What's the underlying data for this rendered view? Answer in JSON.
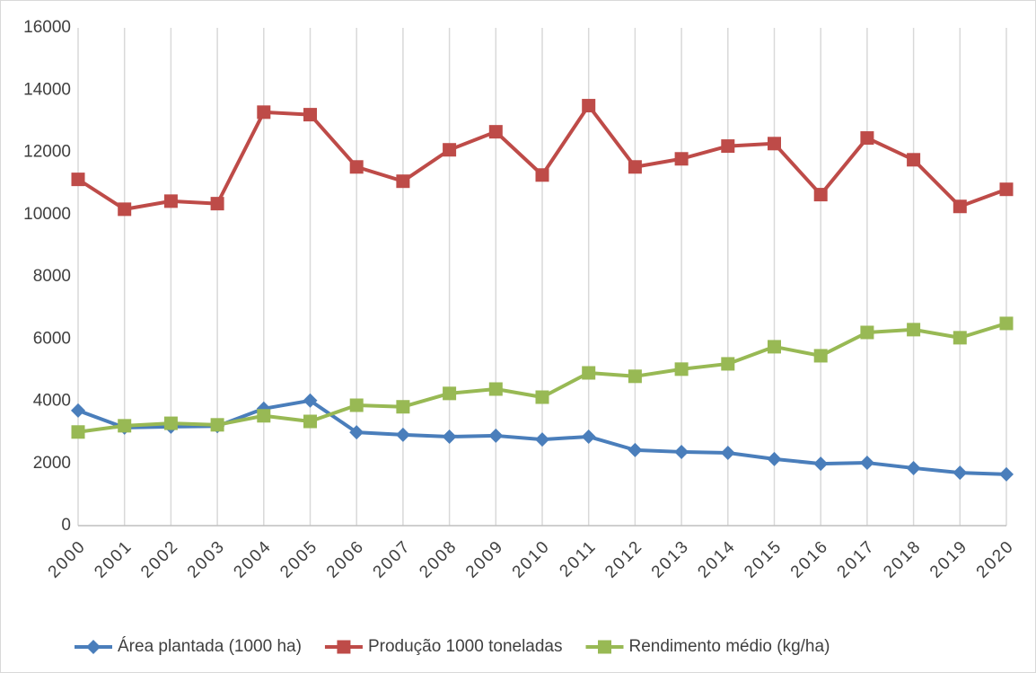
{
  "chart_data": {
    "type": "line",
    "categories": [
      "2000",
      "2001",
      "2002",
      "2003",
      "2004",
      "2005",
      "2006",
      "2007",
      "2008",
      "2009",
      "2010",
      "2011",
      "2012",
      "2013",
      "2014",
      "2015",
      "2016",
      "2017",
      "2018",
      "2019",
      "2020"
    ],
    "series": [
      {
        "name": "Área plantada (1000 ha)",
        "color": "#4a7ebb",
        "marker": "diamond",
        "values": [
          3700,
          3150,
          3180,
          3200,
          3760,
          4020,
          3000,
          2920,
          2860,
          2890,
          2770,
          2860,
          2430,
          2370,
          2340,
          2140,
          1990,
          2020,
          1850,
          1700,
          1650
        ]
      },
      {
        "name": "Produção 1000 toneladas",
        "color": "#be4b48",
        "marker": "square",
        "values": [
          11130,
          10170,
          10430,
          10350,
          13290,
          13210,
          11530,
          11070,
          12080,
          12660,
          11270,
          13500,
          11530,
          11790,
          12200,
          12280,
          10640,
          12460,
          11760,
          10260,
          10810
        ]
      },
      {
        "name": "Rendimento médio (kg/ha)",
        "color": "#98b954",
        "marker": "square",
        "values": [
          3010,
          3210,
          3290,
          3240,
          3530,
          3350,
          3870,
          3820,
          4250,
          4390,
          4130,
          4910,
          4800,
          5030,
          5200,
          5750,
          5460,
          6210,
          6300,
          6040,
          6500
        ]
      }
    ],
    "ylim": [
      0,
      16000
    ],
    "yticks": [
      0,
      2000,
      4000,
      6000,
      8000,
      10000,
      12000,
      14000,
      16000
    ],
    "grid": true,
    "legend": "bottom"
  }
}
